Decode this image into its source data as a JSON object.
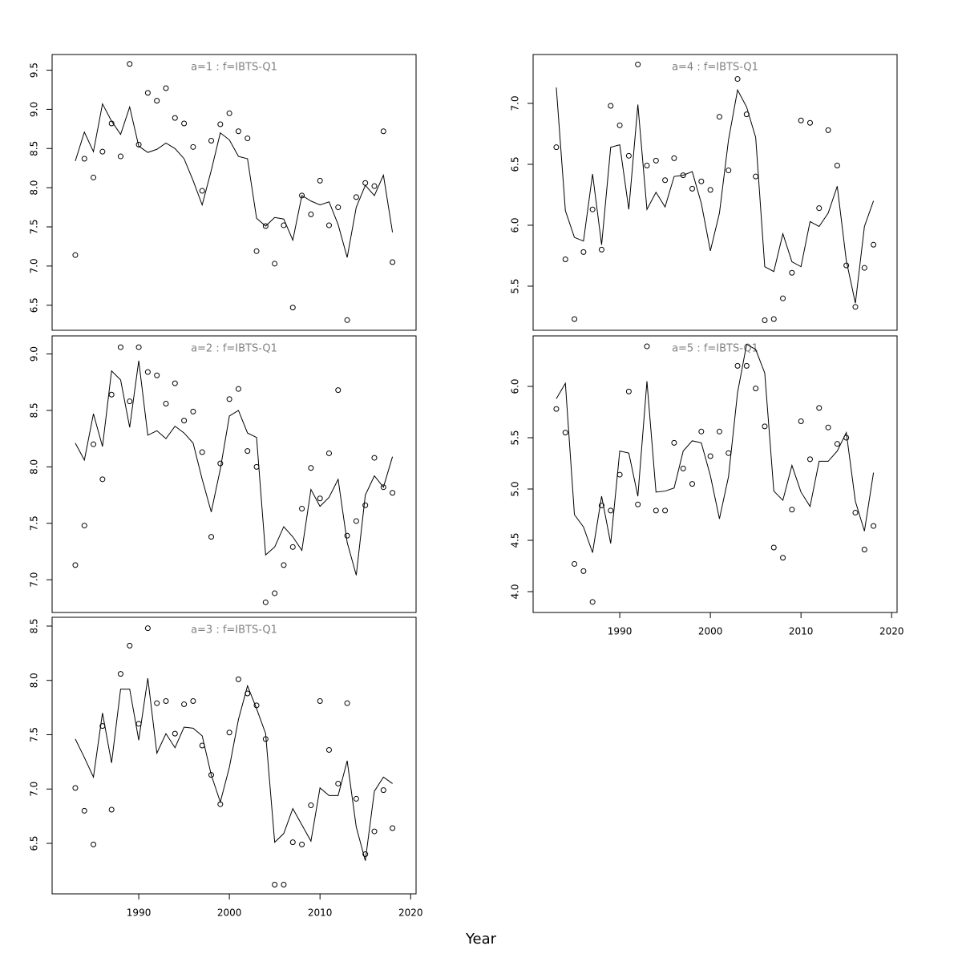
{
  "xlabel": "Year",
  "chart_data": [
    {
      "type": "line",
      "title": "a=1  :  f=IBTS-Q1",
      "x": [
        1983,
        1984,
        1985,
        1986,
        1987,
        1988,
        1989,
        1990,
        1991,
        1992,
        1993,
        1994,
        1995,
        1996,
        1997,
        1998,
        1999,
        2000,
        2001,
        2002,
        2003,
        2004,
        2005,
        2006,
        2007,
        2008,
        2009,
        2010,
        2011,
        2012,
        2013,
        2014,
        2015,
        2016,
        2017,
        2018
      ],
      "xlim": [
        1980.44,
        2020.6
      ],
      "ylim": [
        6.18,
        9.7
      ],
      "yticks": [
        6.5,
        {
          "value": 7,
          "label": "7.0"
        },
        7.5,
        {
          "value": 8,
          "label": "8.0"
        },
        8.5,
        {
          "value": 9,
          "label": "9.0"
        },
        9.5
      ],
      "series": [
        {
          "style": "line",
          "color": "#000000",
          "values": [
            8.34,
            8.71,
            8.46,
            9.07,
            8.85,
            8.68,
            9.03,
            8.53,
            8.45,
            8.49,
            8.57,
            8.5,
            8.37,
            8.09,
            7.78,
            8.22,
            8.7,
            8.61,
            8.4,
            8.37,
            7.61,
            7.51,
            7.62,
            7.6,
            7.33,
            7.9,
            7.83,
            7.78,
            7.82,
            7.53,
            7.11,
            7.75,
            8.03,
            7.9,
            8.16,
            7.43
          ]
        },
        {
          "style": "points",
          "color": "#000000",
          "values": [
            7.14,
            8.37,
            8.13,
            8.46,
            8.82,
            8.4,
            9.58,
            8.55,
            9.21,
            9.11,
            9.27,
            8.89,
            8.82,
            8.52,
            7.96,
            8.6,
            8.81,
            8.95,
            8.72,
            8.63,
            7.19,
            7.51,
            7.03,
            7.52,
            6.47,
            7.9,
            7.66,
            8.09,
            7.52,
            7.75,
            6.31,
            7.88,
            8.06,
            8.02,
            8.72,
            7.05
          ]
        }
      ]
    },
    {
      "type": "line",
      "title": "a=2  :  f=IBTS-Q1",
      "x": [
        1983,
        1984,
        1985,
        1986,
        1987,
        1988,
        1989,
        1990,
        1991,
        1992,
        1993,
        1994,
        1995,
        1996,
        1997,
        1998,
        1999,
        2000,
        2001,
        2002,
        2003,
        2004,
        2005,
        2006,
        2007,
        2008,
        2009,
        2010,
        2011,
        2012,
        2013,
        2014,
        2015,
        2016,
        2017,
        2018
      ],
      "xlim": [
        1980.44,
        2020.6
      ],
      "ylim": [
        6.71,
        9.16
      ],
      "yticks": [
        {
          "value": 7,
          "label": "7.0"
        },
        7.5,
        {
          "value": 8,
          "label": "8.0"
        },
        8.5,
        {
          "value": 9,
          "label": "9.0"
        }
      ],
      "series": [
        {
          "style": "line",
          "color": "#000000",
          "values": [
            8.21,
            8.06,
            8.47,
            8.18,
            8.85,
            8.77,
            8.35,
            8.94,
            8.28,
            8.32,
            8.25,
            8.36,
            8.3,
            8.21,
            7.89,
            7.6,
            7.98,
            8.45,
            8.5,
            8.3,
            8.26,
            7.22,
            7.29,
            7.47,
            7.38,
            7.26,
            7.8,
            7.65,
            7.73,
            7.89,
            7.33,
            7.04,
            7.75,
            7.92,
            7.82,
            8.09
          ]
        },
        {
          "style": "points",
          "color": "#000000",
          "values": [
            7.13,
            7.48,
            8.2,
            7.89,
            8.64,
            9.06,
            8.58,
            9.06,
            8.84,
            8.81,
            8.56,
            8.74,
            8.41,
            8.49,
            8.13,
            7.38,
            8.03,
            8.6,
            8.69,
            8.14,
            8.0,
            6.8,
            6.88,
            7.13,
            7.29,
            7.63,
            7.99,
            7.72,
            8.12,
            8.68,
            7.39,
            7.52,
            7.66,
            8.08,
            7.82,
            7.77
          ]
        }
      ]
    },
    {
      "type": "line",
      "title": "a=3  :  f=IBTS-Q1",
      "x": [
        1983,
        1984,
        1985,
        1986,
        1987,
        1988,
        1989,
        1990,
        1991,
        1992,
        1993,
        1994,
        1995,
        1996,
        1997,
        1998,
        1999,
        2000,
        2001,
        2002,
        2003,
        2004,
        2005,
        2006,
        2007,
        2008,
        2009,
        2010,
        2011,
        2012,
        2013,
        2014,
        2015,
        2016,
        2017,
        2018
      ],
      "xlim": [
        1980.44,
        2020.6
      ],
      "ylim": [
        6.035,
        8.581
      ],
      "xticks": [
        1990,
        2000,
        2010,
        2020
      ],
      "yticks": [
        6.5,
        {
          "value": 7,
          "label": "7.0"
        },
        7.5,
        {
          "value": 8,
          "label": "8.0"
        },
        8.5
      ],
      "series": [
        {
          "style": "line",
          "color": "#000000",
          "values": [
            7.46,
            7.29,
            7.11,
            7.7,
            7.24,
            7.92,
            7.92,
            7.45,
            8.02,
            7.33,
            7.51,
            7.38,
            7.57,
            7.56,
            7.49,
            7.13,
            6.88,
            7.2,
            7.64,
            7.95,
            7.74,
            7.51,
            6.51,
            6.59,
            6.82,
            6.67,
            6.52,
            7.01,
            6.94,
            6.94,
            7.26,
            6.65,
            6.34,
            6.98,
            7.11,
            7.05
          ]
        },
        {
          "style": "points",
          "color": "#000000",
          "values": [
            7.01,
            6.8,
            6.49,
            7.58,
            6.81,
            8.06,
            8.32,
            7.6,
            8.48,
            7.79,
            7.81,
            7.51,
            7.78,
            7.81,
            7.4,
            7.13,
            6.86,
            7.52,
            8.01,
            7.88,
            7.77,
            7.46,
            6.12,
            6.12,
            6.51,
            6.49,
            6.85,
            7.81,
            7.36,
            7.05,
            7.79,
            6.91,
            6.4,
            6.61,
            6.99,
            6.64
          ]
        }
      ]
    },
    {
      "type": "line",
      "title": "a=4  :  f=IBTS-Q1",
      "x": [
        1983,
        1984,
        1985,
        1986,
        1987,
        1988,
        1989,
        1990,
        1991,
        1992,
        1993,
        1994,
        1995,
        1996,
        1997,
        1998,
        1999,
        2000,
        2001,
        2002,
        2003,
        2004,
        2005,
        2006,
        2007,
        2008,
        2009,
        2010,
        2011,
        2012,
        2013,
        2014,
        2015,
        2016,
        2017,
        2018
      ],
      "xlim": [
        1980.44,
        2020.6
      ],
      "ylim": [
        5.138,
        7.401
      ],
      "yticks": [
        5.5,
        {
          "value": 6,
          "label": "6.0"
        },
        6.5,
        {
          "value": 7,
          "label": "7.0"
        }
      ],
      "series": [
        {
          "style": "line",
          "color": "#000000",
          "values": [
            7.13,
            6.12,
            5.9,
            5.87,
            6.42,
            5.84,
            6.64,
            6.66,
            6.13,
            6.99,
            6.13,
            6.27,
            6.15,
            6.4,
            6.41,
            6.44,
            6.18,
            5.79,
            6.1,
            6.7,
            7.11,
            6.97,
            6.72,
            5.66,
            5.62,
            5.93,
            5.7,
            5.66,
            6.03,
            5.99,
            6.1,
            6.32,
            5.71,
            5.36,
            5.99,
            6.2
          ]
        },
        {
          "style": "points",
          "color": "#000000",
          "values": [
            6.64,
            5.72,
            5.23,
            5.78,
            6.13,
            5.8,
            6.98,
            6.82,
            6.57,
            7.32,
            6.49,
            6.53,
            6.37,
            6.55,
            6.41,
            6.3,
            6.36,
            6.29,
            6.89,
            6.45,
            7.2,
            6.91,
            6.4,
            5.22,
            5.23,
            5.4,
            5.61,
            6.86,
            6.84,
            6.14,
            6.78,
            6.49,
            5.67,
            5.33,
            5.65,
            5.84
          ]
        }
      ]
    },
    {
      "type": "line",
      "title": "a=5  :  f=IBTS-Q1",
      "x": [
        1983,
        1984,
        1985,
        1986,
        1987,
        1988,
        1989,
        1990,
        1991,
        1992,
        1993,
        1994,
        1995,
        1996,
        1997,
        1998,
        1999,
        2000,
        2001,
        2002,
        2003,
        2004,
        2005,
        2006,
        2007,
        2008,
        2009,
        2010,
        2011,
        2012,
        2013,
        2014,
        2015,
        2016,
        2017,
        2018
      ],
      "xlim": [
        1980.44,
        2020.6
      ],
      "ylim": [
        3.797,
        6.492
      ],
      "xticks": [
        1990,
        2000,
        2010,
        2020
      ],
      "yticks": [
        {
          "value": 4,
          "label": "4.0"
        },
        4.5,
        {
          "value": 5,
          "label": "5.0"
        },
        5.5,
        {
          "value": 6,
          "label": "6.0"
        }
      ],
      "series": [
        {
          "style": "line",
          "color": "#000000",
          "values": [
            5.88,
            6.03,
            4.75,
            4.63,
            4.38,
            4.93,
            4.47,
            5.37,
            5.35,
            4.93,
            6.05,
            4.97,
            4.98,
            5.01,
            5.37,
            5.47,
            5.45,
            5.13,
            4.71,
            5.12,
            5.94,
            6.41,
            6.36,
            6.13,
            4.98,
            4.89,
            5.23,
            4.97,
            4.83,
            5.27,
            5.27,
            5.37,
            5.55,
            4.88,
            4.59,
            5.16
          ]
        },
        {
          "style": "points",
          "color": "#000000",
          "values": [
            5.78,
            5.55,
            4.27,
            4.2,
            3.9,
            4.84,
            4.79,
            5.14,
            5.95,
            4.85,
            6.39,
            4.79,
            4.79,
            5.45,
            5.2,
            5.05,
            5.56,
            5.32,
            5.56,
            5.35,
            6.2,
            6.2,
            5.98,
            5.61,
            4.43,
            4.33,
            4.8,
            5.66,
            5.29,
            5.79,
            5.6,
            5.44,
            5.5,
            4.77,
            4.41,
            4.64
          ]
        }
      ]
    }
  ]
}
